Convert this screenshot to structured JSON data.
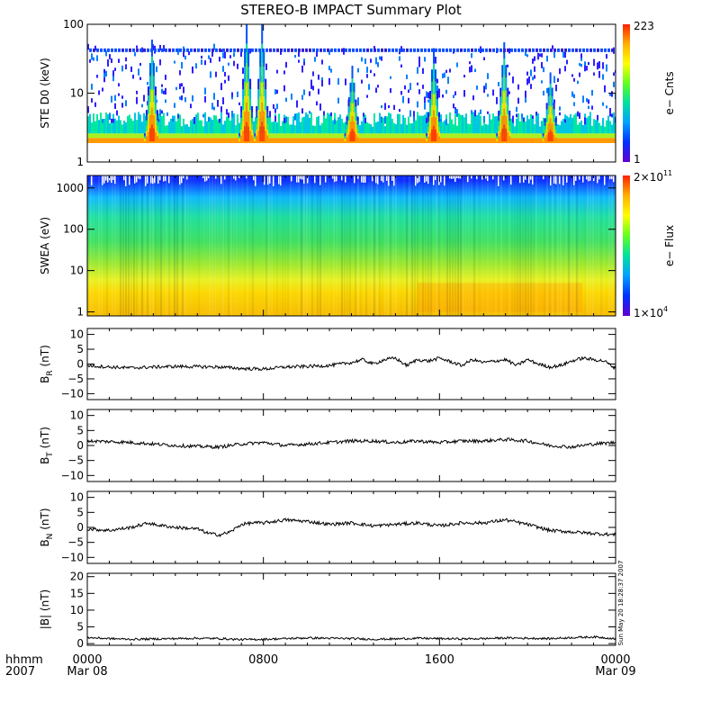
{
  "title": "STEREO-B IMPACT Summary Plot",
  "timestamp": "Sun May 20 18:28:37 2007",
  "time_axis": {
    "corner_label_1": "hhmm",
    "corner_label_2": "2007",
    "ticks": [
      {
        "hours": 0,
        "label": "0000",
        "sub": "Mar 08"
      },
      {
        "hours": 8,
        "label": "0800",
        "sub": ""
      },
      {
        "hours": 16,
        "label": "1600",
        "sub": ""
      },
      {
        "hours": 24,
        "label": "0000",
        "sub": "Mar 09"
      }
    ],
    "range_hours": [
      0,
      24
    ]
  },
  "chart_data": [
    {
      "type": "heatmap",
      "id": "ste",
      "ylabel": "STE D0 (keV)",
      "yscale": "log",
      "ylim": [
        1,
        100
      ],
      "yticks": [
        {
          "v": 1,
          "label": "1"
        },
        {
          "v": 10,
          "label": "10"
        },
        {
          "v": 100,
          "label": "100"
        }
      ],
      "colorbar": {
        "label": "e− Cnts",
        "max_label": "223",
        "min_label": "1",
        "colors": [
          "#ff2000",
          "#ffb000",
          "#ffff00",
          "#60ff20",
          "#00e0a0",
          "#00a0ff",
          "#0030ff",
          "#6000d0"
        ]
      },
      "background_count_energy_keV": [
        2.0,
        2.6
      ],
      "saturated_band_keV": 42,
      "bursts": [
        {
          "hours": 2.9,
          "top_keV": 60
        },
        {
          "hours": 7.2,
          "top_keV": 100
        },
        {
          "hours": 7.9,
          "top_keV": 100
        },
        {
          "hours": 12.0,
          "top_keV": 25
        },
        {
          "hours": 15.7,
          "top_keV": 45
        },
        {
          "hours": 18.9,
          "top_keV": 55
        },
        {
          "hours": 21.0,
          "top_keV": 20
        }
      ]
    },
    {
      "type": "heatmap",
      "id": "swea",
      "ylabel": "SWEA (eV)",
      "yscale": "log",
      "ylim": [
        0.8,
        2000
      ],
      "yticks": [
        {
          "v": 1,
          "label": "1"
        },
        {
          "v": 10,
          "label": "10"
        },
        {
          "v": 100,
          "label": "100"
        },
        {
          "v": 1000,
          "label": "1000"
        }
      ],
      "colorbar": {
        "label": "e− Flux",
        "max_label": "2×10",
        "max_exp": "11",
        "min_label": "1×10",
        "min_exp": "4",
        "colors": [
          "#ff2000",
          "#ffb000",
          "#ffff00",
          "#60ff20",
          "#00e0a0",
          "#00a0ff",
          "#0030ff",
          "#6000d0"
        ]
      },
      "color_by_energy_eV": [
        {
          "eV": 1,
          "color": "#f7c000"
        },
        {
          "eV": 3,
          "color": "#fcd800"
        },
        {
          "eV": 6,
          "color": "#e8f020"
        },
        {
          "eV": 15,
          "color": "#9ae830"
        },
        {
          "eV": 50,
          "color": "#40e060"
        },
        {
          "eV": 200,
          "color": "#20e0a0"
        },
        {
          "eV": 600,
          "color": "#10b8ff"
        },
        {
          "eV": 1500,
          "color": "#1030ff"
        }
      ]
    },
    {
      "type": "line",
      "id": "br",
      "ylabel": "B",
      "ylabel_sub": "R",
      "ylabel_unit": "(nT)",
      "ylim": [
        -12,
        12
      ],
      "yticks": [
        {
          "v": -10,
          "label": "−10"
        },
        {
          "v": -5,
          "label": "−5"
        },
        {
          "v": 0,
          "label": "0"
        },
        {
          "v": 5,
          "label": "5"
        },
        {
          "v": 10,
          "label": "10"
        }
      ],
      "x": [
        0,
        1,
        2,
        3,
        4,
        5,
        6,
        7,
        8,
        9,
        10,
        11,
        12,
        12.5,
        13,
        13.5,
        14,
        14.5,
        15,
        15.5,
        16,
        16.5,
        17,
        17.5,
        18,
        18.5,
        19,
        19.5,
        20,
        20.5,
        21,
        21.5,
        22,
        22.5,
        23,
        23.5,
        24
      ],
      "y": [
        -0.5,
        -1.0,
        -1.3,
        -1.0,
        -0.8,
        -0.9,
        -1.0,
        -1.5,
        -1.7,
        -1.0,
        -0.8,
        -0.5,
        0.5,
        1.5,
        0.0,
        1.5,
        2.0,
        -0.5,
        1.5,
        1.0,
        2.0,
        0.8,
        -0.5,
        1.5,
        0.5,
        1.0,
        1.5,
        -0.5,
        1.5,
        0.0,
        -1.0,
        -0.5,
        1.0,
        2.0,
        1.5,
        1.0,
        -1.5
      ]
    },
    {
      "type": "line",
      "id": "bt",
      "ylabel": "B",
      "ylabel_sub": "T",
      "ylabel_unit": "(nT)",
      "ylim": [
        -12,
        12
      ],
      "yticks": [
        {
          "v": -10,
          "label": "−10"
        },
        {
          "v": -5,
          "label": "−5"
        },
        {
          "v": 0,
          "label": "0"
        },
        {
          "v": 5,
          "label": "5"
        },
        {
          "v": 10,
          "label": "10"
        }
      ],
      "x": [
        0,
        1,
        2,
        3,
        4,
        5,
        6,
        7,
        8,
        9,
        10,
        11,
        12,
        13,
        14,
        15,
        16,
        17,
        18,
        19,
        20,
        21,
        22,
        23,
        24
      ],
      "y": [
        1.5,
        1.3,
        1.0,
        0.5,
        0.0,
        -0.3,
        -0.5,
        0.5,
        1.0,
        0.0,
        0.5,
        1.0,
        1.5,
        1.5,
        1.0,
        1.5,
        1.0,
        1.5,
        1.5,
        2.0,
        1.5,
        0.0,
        -0.5,
        0.5,
        1.0
      ]
    },
    {
      "type": "line",
      "id": "bn",
      "ylabel": "B",
      "ylabel_sub": "N",
      "ylabel_unit": "(nT)",
      "ylim": [
        -12,
        12
      ],
      "yticks": [
        {
          "v": -10,
          "label": "−10"
        },
        {
          "v": -5,
          "label": "−5"
        },
        {
          "v": 0,
          "label": "0"
        },
        {
          "v": 5,
          "label": "5"
        },
        {
          "v": 10,
          "label": "10"
        }
      ],
      "x": [
        0,
        1,
        2,
        2.8,
        3,
        4,
        5,
        5.5,
        6,
        6.5,
        7,
        7.5,
        8,
        9,
        10,
        11,
        12,
        13,
        14,
        15,
        16,
        17,
        18,
        19,
        20,
        21,
        22,
        23,
        24
      ],
      "y": [
        -0.5,
        -1.0,
        0.0,
        1.5,
        1.0,
        0.0,
        -0.5,
        -2.0,
        -2.5,
        -1.5,
        1.0,
        1.5,
        1.5,
        2.5,
        2.0,
        1.0,
        1.5,
        0.5,
        1.0,
        1.5,
        0.5,
        1.5,
        1.5,
        2.5,
        1.0,
        -1.0,
        -1.5,
        -2.0,
        -2.5
      ]
    },
    {
      "type": "line",
      "id": "btot",
      "ylabel": "|B| (nT)",
      "ylim": [
        -0.5,
        21
      ],
      "yticks": [
        {
          "v": 0,
          "label": "0"
        },
        {
          "v": 5,
          "label": "5"
        },
        {
          "v": 10,
          "label": "10"
        },
        {
          "v": 15,
          "label": "15"
        },
        {
          "v": 20,
          "label": "20"
        }
      ],
      "x": [
        0,
        1,
        2,
        3,
        4,
        5,
        6,
        7,
        8,
        9,
        10,
        11,
        12,
        13,
        14,
        15,
        16,
        17,
        18,
        19,
        20,
        21,
        22,
        23,
        24
      ],
      "y": [
        1.8,
        1.5,
        1.3,
        1.4,
        1.5,
        1.6,
        1.5,
        1.2,
        1.3,
        1.5,
        1.7,
        1.6,
        1.5,
        1.3,
        1.4,
        1.6,
        1.5,
        1.4,
        1.5,
        1.7,
        1.6,
        1.5,
        1.8,
        2.0,
        1.5
      ]
    }
  ]
}
